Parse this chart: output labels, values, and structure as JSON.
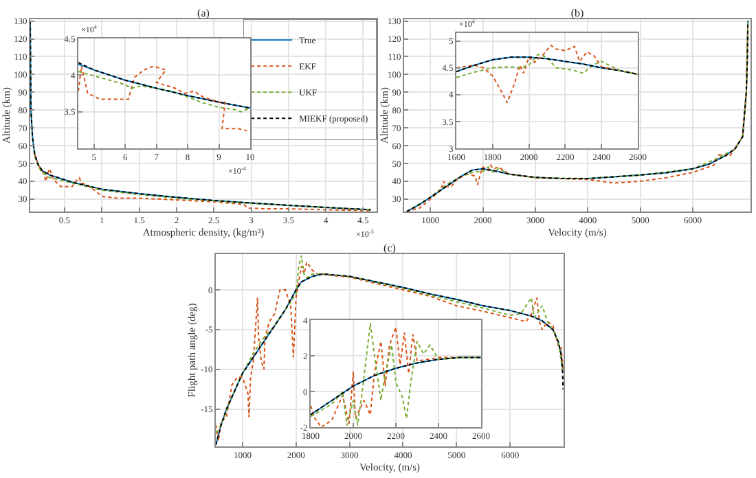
{
  "chart_data": [
    {
      "type": "line",
      "title": "(a)",
      "xlabel": "Atmospheric density, (kg/m³)",
      "ylabel": "Altitude (km)",
      "xlim": [
        0.04,
        4.68
      ],
      "ylim": [
        23,
        131
      ],
      "xticks": [
        0.5,
        1,
        1.5,
        2,
        2.5,
        3,
        3.5,
        4,
        4.5
      ],
      "yticks": [
        30,
        40,
        50,
        60,
        70,
        80,
        90,
        100,
        110,
        120,
        130
      ],
      "grid": true,
      "legend": "top right",
      "annotations": [
        "×10$^{-3}$"
      ],
      "series": [
        {
          "name": "True",
          "color": "#0072bd",
          "line_style": "solid",
          "x": [
            0.04,
            0.045,
            0.05,
            0.07,
            0.1,
            0.15,
            0.2,
            0.3,
            0.45,
            0.6,
            0.8,
            1,
            1.5,
            2,
            2.5,
            3,
            3.5,
            4,
            4.6
          ],
          "values": [
            130,
            100,
            80,
            65,
            55,
            49,
            46,
            43.5,
            41.5,
            39.5,
            37.5,
            35.5,
            33,
            31,
            29.2,
            27.8,
            26.5,
            25.3,
            24
          ]
        },
        {
          "name": "EKF",
          "color": "#d95319",
          "line_style": "dashed",
          "x": [
            0.1,
            0.15,
            0.2,
            0.22,
            0.25,
            0.28,
            0.3,
            0.35,
            0.45,
            0.6,
            0.65,
            0.7,
            0.72,
            0.8,
            0.9,
            1,
            1.2,
            1.5,
            2,
            2.5,
            2.9,
            2.95,
            3.2,
            3.5,
            4,
            4.6
          ],
          "values": [
            55,
            49,
            46,
            44,
            40,
            45,
            47,
            41,
            37,
            37,
            40,
            42,
            39,
            38,
            35,
            31.5,
            30.5,
            30.5,
            29.5,
            28.5,
            27,
            25,
            24.5,
            24.5,
            24,
            23.5
          ]
        },
        {
          "name": "UKF",
          "color": "#77ac30",
          "line_style": "dashed",
          "x": [
            0.04,
            0.05,
            0.07,
            0.1,
            0.15,
            0.2,
            0.3,
            0.5,
            0.8,
            1,
            1.5,
            2,
            3,
            4.6
          ],
          "values": [
            130,
            80,
            64,
            54,
            48,
            45,
            42,
            40,
            37,
            35,
            32.5,
            30.5,
            27.5,
            24
          ]
        },
        {
          "name": "MIEKF (proposed)",
          "color": "#000000",
          "line_style": "dashed",
          "x": [
            0.04,
            0.045,
            0.05,
            0.07,
            0.1,
            0.15,
            0.2,
            0.3,
            0.45,
            0.6,
            0.8,
            1,
            1.5,
            2,
            2.5,
            3,
            3.5,
            4,
            4.6
          ],
          "values": [
            130,
            100,
            80,
            65,
            55,
            49,
            46,
            43.5,
            41.5,
            39.5,
            37.5,
            35.5,
            33,
            31,
            29.2,
            27.8,
            26.5,
            25.3,
            24
          ]
        }
      ]
    },
    {
      "type": "line",
      "xlim": [
        4.5,
        10
      ],
      "ylim": [
        3,
        4.5
      ],
      "xticks": [
        5,
        6,
        7,
        8,
        9,
        10
      ],
      "yticks": [
        3.5,
        4,
        4.5
      ],
      "grid": true,
      "annotations": [
        "×10$^{4}$",
        "×10$^{-4}$"
      ],
      "series": [
        {
          "color": "#0072bd",
          "line_style": "solid",
          "x": [
            4.5,
            5,
            6,
            7,
            8,
            9,
            10
          ],
          "values": [
            4.15,
            4.07,
            3.93,
            3.82,
            3.72,
            3.63,
            3.55
          ]
        },
        {
          "color": "#d95319",
          "line_style": "dashed",
          "x": [
            4.5,
            4.6,
            4.8,
            5.2,
            6.1,
            6.3,
            6.6,
            6.9,
            7.3,
            7,
            7.6,
            7.9,
            8.2,
            8.5,
            9,
            9.2,
            9.1,
            9.6,
            9.9
          ],
          "values": [
            3.78,
            4.12,
            3.75,
            3.67,
            3.67,
            3.97,
            4.07,
            4.12,
            4.07,
            3.9,
            3.82,
            3.75,
            3.78,
            3.7,
            3.63,
            3.63,
            3.27,
            3.27,
            3.24
          ]
        },
        {
          "color": "#77ac30",
          "line_style": "dashed",
          "x": [
            4.5,
            5,
            5.5,
            6,
            6.2,
            6.5,
            7,
            7.5,
            8,
            8.5,
            9,
            9.5,
            9.7,
            10
          ],
          "values": [
            4.05,
            3.99,
            3.93,
            3.87,
            3.82,
            3.85,
            3.82,
            3.78,
            3.7,
            3.62,
            3.56,
            3.53,
            3.5,
            3.55
          ]
        },
        {
          "color": "#000000",
          "line_style": "dashed",
          "x": [
            4.5,
            5,
            6,
            7,
            8,
            9,
            10
          ],
          "values": [
            4.17,
            4.07,
            3.93,
            3.82,
            3.72,
            3.63,
            3.55
          ]
        }
      ]
    },
    {
      "type": "line",
      "title": "(b)",
      "xlabel": "Velocity (m/s)",
      "ylabel": "Altitude (km)",
      "xlim": [
        500,
        7100
      ],
      "ylim": [
        23,
        131
      ],
      "xticks": [
        1000,
        2000,
        3000,
        4000,
        5000,
        6000
      ],
      "yticks": [
        30,
        40,
        50,
        60,
        70,
        80,
        90,
        100,
        110,
        120,
        130
      ],
      "grid": true,
      "series": [
        {
          "color": "#0072bd",
          "line_style": "solid",
          "x": [
            550,
            800,
            1000,
            1200,
            1400,
            1600,
            1800,
            2000,
            2200,
            2500,
            3000,
            3500,
            4000,
            4500,
            5000,
            5500,
            6000,
            6300,
            6600,
            6800,
            6950,
            7020,
            7040,
            7050
          ],
          "values": [
            23,
            27,
            31,
            35,
            39,
            43,
            46.3,
            47,
            46,
            44,
            42.2,
            41.5,
            41.5,
            42.5,
            43.5,
            44.8,
            47,
            49.5,
            54,
            58,
            65,
            90,
            110,
            130
          ]
        },
        {
          "color": "#d95319",
          "line_style": "dashed",
          "x": [
            550,
            800,
            1000,
            1200,
            1250,
            1300,
            1400,
            1500,
            1700,
            1850,
            1900,
            1950,
            2000,
            2100,
            2150,
            2200,
            2300,
            2500,
            3000,
            4000,
            4500,
            5000,
            5500,
            6000,
            6400,
            6500,
            6700,
            6950,
            7020,
            7050
          ],
          "values": [
            23,
            25,
            30,
            35,
            40,
            37,
            37,
            41,
            44,
            43,
            38,
            44,
            48,
            46,
            49,
            47,
            48,
            44,
            42,
            41,
            39,
            40,
            42,
            45,
            49,
            55,
            54,
            65,
            90,
            128
          ]
        },
        {
          "color": "#77ac30",
          "line_style": "dashed",
          "x": [
            550,
            1000,
            1300,
            1600,
            1800,
            2000,
            2100,
            2200,
            2300,
            2500,
            3000,
            4000,
            5000,
            6000,
            6400,
            6600,
            6800,
            6950,
            7020,
            7050
          ],
          "values": [
            23,
            31,
            38,
            43,
            45,
            45.5,
            48,
            45,
            47,
            44,
            42,
            41.5,
            43.5,
            47,
            52,
            55,
            58,
            65,
            90,
            130
          ]
        },
        {
          "color": "#000000",
          "line_style": "dashed",
          "x": [
            550,
            800,
            1000,
            1200,
            1400,
            1600,
            1800,
            2000,
            2200,
            2500,
            3000,
            3500,
            4000,
            4500,
            5000,
            5500,
            6000,
            6300,
            6600,
            6800,
            6950,
            7020,
            7040,
            7050
          ],
          "values": [
            23,
            27,
            31,
            35,
            39,
            43,
            46.3,
            47,
            46,
            44,
            42.2,
            41.5,
            41.5,
            42.5,
            43.5,
            44.8,
            47,
            49.5,
            54,
            58,
            65,
            90,
            110,
            130
          ]
        }
      ]
    },
    {
      "type": "line",
      "xlim": [
        1600,
        2600
      ],
      "ylim": [
        3,
        5.15
      ],
      "xticks": [
        1600,
        1800,
        2000,
        2200,
        2400,
        2600
      ],
      "yticks": [
        3,
        3.5,
        4,
        4.5,
        5
      ],
      "grid": true,
      "annotations": [
        "×10$^{4}$"
      ],
      "series": [
        {
          "color": "#0072bd",
          "line_style": "solid",
          "x": [
            1600,
            1700,
            1800,
            1900,
            2000,
            2100,
            2200,
            2300,
            2400,
            2500,
            2600
          ],
          "values": [
            4.43,
            4.55,
            4.65,
            4.7,
            4.7,
            4.67,
            4.62,
            4.57,
            4.5,
            4.45,
            4.38
          ]
        },
        {
          "color": "#d95319",
          "line_style": "dashed",
          "x": [
            1600,
            1700,
            1750,
            1800,
            1850,
            1880,
            1920,
            1950,
            1970,
            2000,
            2030,
            2080,
            2120,
            2150,
            2200,
            2250,
            2280,
            2320,
            2360,
            2400,
            2500,
            2600
          ],
          "values": [
            4.5,
            4.55,
            4.5,
            4.35,
            4.05,
            3.85,
            4.2,
            4.55,
            4.4,
            4.7,
            4.6,
            4.75,
            4.92,
            4.85,
            4.82,
            4.9,
            4.62,
            4.8,
            4.72,
            4.52,
            4.45,
            4.38
          ]
        },
        {
          "color": "#77ac30",
          "line_style": "dashed",
          "x": [
            1600,
            1700,
            1800,
            1900,
            1950,
            2000,
            2050,
            2100,
            2150,
            2200,
            2250,
            2300,
            2350,
            2400,
            2500,
            2600
          ],
          "values": [
            4.32,
            4.42,
            4.5,
            4.52,
            4.5,
            4.55,
            4.75,
            4.7,
            4.5,
            4.48,
            4.45,
            4.4,
            4.55,
            4.62,
            4.45,
            4.38
          ]
        },
        {
          "color": "#000000",
          "line_style": "dashed",
          "x": [
            1600,
            1700,
            1800,
            1900,
            2000,
            2100,
            2200,
            2300,
            2400,
            2500,
            2600
          ],
          "values": [
            4.43,
            4.55,
            4.65,
            4.7,
            4.7,
            4.67,
            4.62,
            4.57,
            4.5,
            4.45,
            4.38
          ]
        }
      ]
    },
    {
      "type": "line",
      "title": "(c)",
      "xlabel": "Velocity, (m/s)",
      "ylabel": "Flight path angle (deg)",
      "xlim": [
        500,
        7000
      ],
      "ylim": [
        -19.7,
        4.5
      ],
      "xticks": [
        1000,
        2000,
        3000,
        4000,
        5000,
        6000
      ],
      "yticks": [
        -15,
        -10,
        -5,
        0
      ],
      "grid": true,
      "series": [
        {
          "color": "#0072bd",
          "line_style": "solid",
          "x": [
            500,
            600,
            700,
            800,
            1000,
            1200,
            1400,
            1600,
            1800,
            2000,
            2100,
            2300,
            2500,
            3000,
            3500,
            4000,
            4500,
            5000,
            5500,
            6000,
            6400,
            6600,
            6800,
            6900,
            6950,
            6980
          ],
          "values": [
            -19.5,
            -17,
            -15,
            -13.5,
            -10.5,
            -8.5,
            -6.5,
            -4.5,
            -2.5,
            0,
            1,
            1.7,
            2,
            1.7,
            1,
            0.3,
            -0.5,
            -1.2,
            -2,
            -2.6,
            -3.3,
            -3.9,
            -5,
            -6.5,
            -8,
            -10
          ]
        },
        {
          "color": "#d95319",
          "line_style": "dashed",
          "x": [
            500,
            550,
            600,
            700,
            800,
            900,
            1000,
            1100,
            1120,
            1150,
            1200,
            1250,
            1280,
            1300,
            1350,
            1400,
            1420,
            1500,
            1600,
            1700,
            1800,
            1900,
            1950,
            2000,
            2050,
            2100,
            2150,
            2200,
            2250,
            2300,
            2400,
            3000,
            3500,
            4000,
            4500,
            5000,
            5500,
            6000,
            6300,
            6400,
            6500,
            6550,
            6600,
            6700,
            6800,
            6900,
            6950,
            6990
          ],
          "values": [
            -17,
            -19,
            -16.5,
            -16,
            -12,
            -11,
            -11,
            -13,
            -16,
            -11,
            -9,
            -4,
            -1,
            -6,
            -9,
            -10,
            -6,
            -4,
            -3,
            0,
            0,
            -2,
            -8.5,
            -1,
            1,
            3,
            2,
            3.5,
            3,
            2.5,
            2,
            1.6,
            0.8,
            0,
            -0.8,
            -2,
            -2.7,
            -3.5,
            -4,
            -3,
            -1,
            -4,
            -5,
            -4,
            -4.5,
            -7,
            -7,
            -10
          ]
        },
        {
          "color": "#77ac30",
          "line_style": "dashed",
          "x": [
            500,
            600,
            800,
            1000,
            1200,
            1300,
            1400,
            1600,
            1800,
            2000,
            2050,
            2100,
            2150,
            2200,
            2300,
            2500,
            3000,
            4000,
            5000,
            5500,
            6000,
            6200,
            6400,
            6450,
            6500,
            6600,
            6700,
            6800,
            6900,
            6980
          ],
          "values": [
            -18,
            -17,
            -13.5,
            -10.5,
            -8,
            -7,
            -6,
            -4.5,
            -2.5,
            -0.5,
            3,
            4.3,
            2,
            1.5,
            2,
            2,
            1.7,
            0.2,
            -1.5,
            -2.3,
            -3.2,
            -3,
            -1,
            -3.5,
            -3,
            -2,
            -4,
            -5,
            -6.5,
            -10
          ]
        },
        {
          "color": "#000000",
          "line_style": "dashed",
          "x": [
            500,
            600,
            700,
            800,
            1000,
            1200,
            1400,
            1600,
            1800,
            2000,
            2100,
            2300,
            2500,
            3000,
            3500,
            4000,
            4500,
            5000,
            5500,
            6000,
            6400,
            6600,
            6800,
            6900,
            6950,
            6980,
            6990
          ],
          "values": [
            -19.5,
            -17,
            -15,
            -13.5,
            -10.5,
            -8.5,
            -6.5,
            -4.5,
            -2.5,
            0,
            1,
            1.7,
            2,
            1.7,
            1,
            0.3,
            -0.5,
            -1.2,
            -2,
            -2.6,
            -3.3,
            -3.9,
            -5,
            -6.5,
            -8,
            -10,
            -12.5
          ]
        }
      ]
    },
    {
      "type": "line",
      "xlim": [
        1800,
        2600
      ],
      "ylim": [
        -2,
        4
      ],
      "xticks": [
        1800,
        2000,
        2200,
        2400,
        2600
      ],
      "yticks": [
        -2,
        0,
        2,
        4
      ],
      "grid": true,
      "series": [
        {
          "color": "#0072bd",
          "line_style": "solid",
          "x": [
            1800,
            1900,
            2000,
            2100,
            2200,
            2300,
            2400,
            2500,
            2600
          ],
          "values": [
            -1.3,
            -0.5,
            0.3,
            0.9,
            1.3,
            1.6,
            1.8,
            1.9,
            1.9
          ]
        },
        {
          "color": "#d95319",
          "line_style": "dashed",
          "x": [
            1800,
            1820,
            1850,
            1900,
            1950,
            1980,
            2000,
            2010,
            2050,
            2080,
            2100,
            2130,
            2150,
            2170,
            2200,
            2220,
            2240,
            2260,
            2280,
            2300,
            2350,
            2400,
            2600
          ],
          "values": [
            -0.8,
            -1.5,
            -2,
            -1.6,
            -0.2,
            -1.8,
            1.1,
            -1.5,
            -0.5,
            -1.3,
            1.1,
            2.8,
            0.3,
            2.6,
            3.6,
            1.5,
            3.3,
            1,
            3.2,
            1.7,
            1.8,
            1.9,
            1.9
          ]
        },
        {
          "color": "#77ac30",
          "line_style": "dashed",
          "x": [
            1800,
            1900,
            1950,
            1970,
            2000,
            2020,
            2040,
            2080,
            2100,
            2130,
            2150,
            2180,
            2200,
            2230,
            2250,
            2270,
            2300,
            2330,
            2360,
            2400,
            2500,
            2600
          ],
          "values": [
            -1.4,
            -0.7,
            0,
            -1.9,
            -0.5,
            -1.9,
            -0.2,
            3.8,
            2,
            -0.5,
            1,
            2.6,
            0.5,
            -0.3,
            -1.5,
            0.5,
            2.8,
            2.1,
            2.6,
            1.8,
            1.9,
            1.9
          ]
        },
        {
          "color": "#000000",
          "line_style": "dashed",
          "x": [
            1800,
            1900,
            2000,
            2100,
            2200,
            2300,
            2400,
            2500,
            2600
          ],
          "values": [
            -1.3,
            -0.5,
            0.3,
            0.9,
            1.3,
            1.6,
            1.8,
            1.9,
            1.9
          ]
        }
      ]
    }
  ]
}
